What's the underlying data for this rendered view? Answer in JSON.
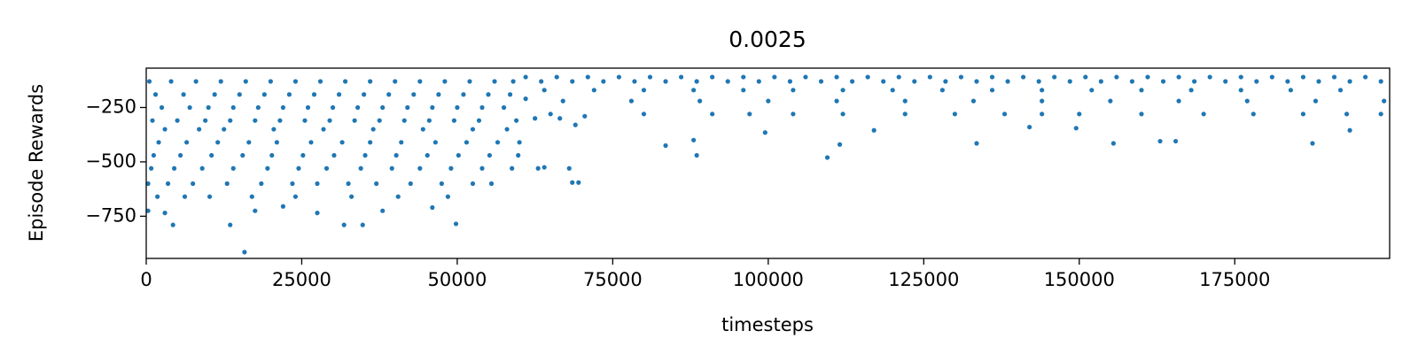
{
  "chart_data": {
    "type": "scatter",
    "title": "0.0025",
    "xlabel": "timesteps",
    "ylabel": "Episode Rewards",
    "color": "#1f77b4",
    "xlim": [
      0,
      199900
    ],
    "ylim": [
      -944,
      -69
    ],
    "xticks": [
      0,
      25000,
      50000,
      75000,
      100000,
      125000,
      150000,
      175000
    ],
    "yticks": [
      {
        "value": -750,
        "label": "−750"
      },
      {
        "value": -500,
        "label": "−500"
      },
      {
        "value": -250,
        "label": "−250"
      }
    ],
    "x": [
      500,
      4000,
      8000,
      12000,
      16000,
      20000,
      24000,
      28000,
      32000,
      36000,
      40000,
      44000,
      48000,
      52000,
      56000,
      59000,
      1500,
      6000,
      11000,
      15000,
      19000,
      23000,
      27000,
      31000,
      35000,
      39000,
      43000,
      47000,
      51000,
      55000,
      58500,
      2500,
      7000,
      10000,
      14000,
      18000,
      22000,
      26000,
      30000,
      34000,
      38000,
      42000,
      46000,
      50000,
      54000,
      57500,
      1000,
      5000,
      9500,
      13500,
      17500,
      21500,
      25500,
      29500,
      33500,
      37500,
      41500,
      45500,
      49500,
      53500,
      59500,
      3000,
      8500,
      12500,
      20500,
      28500,
      36500,
      44500,
      52500,
      58000,
      2000,
      6500,
      11500,
      16500,
      21000,
      26500,
      31500,
      36000,
      41000,
      46500,
      51500,
      56500,
      60000,
      1200,
      5500,
      10500,
      15500,
      20200,
      25200,
      30200,
      35200,
      40200,
      45200,
      50200,
      55200,
      59800,
      800,
      4500,
      9000,
      14000,
      19500,
      24500,
      29000,
      34500,
      39500,
      44000,
      49000,
      54000,
      58800,
      300,
      3500,
      7500,
      13000,
      18500,
      23500,
      27500,
      32500,
      37000,
      42500,
      47500,
      52500,
      55500,
      1800,
      6200,
      10200,
      17000,
      24000,
      33000,
      40500,
      48500,
      300,
      3000,
      4300,
      13500,
      15800,
      17500,
      27500,
      31800,
      34800,
      38000,
      49800,
      46000,
      22000,
      63000,
      64000,
      68000,
      68500,
      69500,
      61000,
      62500,
      65000,
      66500,
      69000,
      70500,
      61000,
      66000,
      71000,
      76000,
      81000,
      86000,
      91000,
      96000,
      101000,
      106000,
      111000,
      116000,
      121000,
      126000,
      131000,
      136000,
      141000,
      146000,
      151000,
      156000,
      161000,
      166000,
      171000,
      176000,
      181000,
      186000,
      191000,
      196000,
      63500,
      68500,
      73500,
      78500,
      83500,
      88500,
      93500,
      98500,
      103500,
      108500,
      113500,
      118500,
      123500,
      128500,
      133500,
      138500,
      143500,
      148500,
      153500,
      158500,
      163500,
      168500,
      173500,
      178500,
      183500,
      188500,
      193500,
      198500,
      64000,
      72000,
      80000,
      88000,
      96000,
      104000,
      112000,
      120000,
      128000,
      136000,
      144000,
      152000,
      160000,
      168000,
      176000,
      184000,
      192000,
      67000,
      78000,
      89000,
      100000,
      111000,
      122000,
      133000,
      144000,
      155000,
      166000,
      177000,
      188000,
      199000,
      80000,
      91000,
      97000,
      104000,
      112000,
      122000,
      130000,
      138000,
      144000,
      150000,
      160000,
      170000,
      178000,
      186000,
      193000,
      198500,
      83500,
      88500,
      99500,
      109500,
      111500,
      133500,
      155500,
      163000,
      165500,
      187500,
      193500,
      88000,
      142000,
      149500,
      117000
    ],
    "values": [
      -130,
      -130,
      -130,
      -130,
      -130,
      -130,
      -130,
      -130,
      -130,
      -130,
      -130,
      -130,
      -130,
      -130,
      -130,
      -130,
      -190,
      -190,
      -190,
      -190,
      -190,
      -190,
      -190,
      -190,
      -190,
      -190,
      -190,
      -190,
      -190,
      -190,
      -190,
      -250,
      -250,
      -250,
      -250,
      -250,
      -250,
      -250,
      -250,
      -250,
      -250,
      -250,
      -250,
      -250,
      -250,
      -250,
      -310,
      -310,
      -310,
      -310,
      -310,
      -310,
      -310,
      -310,
      -310,
      -310,
      -310,
      -310,
      -310,
      -310,
      -310,
      -350,
      -350,
      -350,
      -350,
      -350,
      -350,
      -350,
      -350,
      -350,
      -410,
      -410,
      -410,
      -410,
      -410,
      -410,
      -410,
      -410,
      -410,
      -410,
      -410,
      -410,
      -410,
      -470,
      -470,
      -470,
      -470,
      -470,
      -470,
      -470,
      -470,
      -470,
      -470,
      -470,
      -470,
      -470,
      -530,
      -530,
      -530,
      -530,
      -530,
      -530,
      -530,
      -530,
      -530,
      -530,
      -530,
      -530,
      -530,
      -600,
      -600,
      -600,
      -600,
      -600,
      -600,
      -600,
      -600,
      -600,
      -600,
      -600,
      -600,
      -600,
      -660,
      -660,
      -660,
      -660,
      -660,
      -660,
      -660,
      -660,
      -725,
      -735,
      -790,
      -790,
      -915,
      -725,
      -735,
      -790,
      -790,
      -725,
      -785,
      -710,
      -705,
      -530,
      -525,
      -530,
      -595,
      -595,
      -210,
      -300,
      -280,
      -300,
      -330,
      -290,
      -110,
      -110,
      -110,
      -110,
      -110,
      -110,
      -110,
      -110,
      -110,
      -110,
      -110,
      -110,
      -110,
      -110,
      -110,
      -110,
      -110,
      -110,
      -110,
      -110,
      -110,
      -110,
      -110,
      -110,
      -110,
      -110,
      -110,
      -110,
      -130,
      -130,
      -130,
      -130,
      -130,
      -130,
      -130,
      -130,
      -130,
      -130,
      -130,
      -130,
      -130,
      -130,
      -130,
      -130,
      -130,
      -130,
      -130,
      -130,
      -130,
      -130,
      -130,
      -130,
      -130,
      -130,
      -130,
      -130,
      -170,
      -170,
      -170,
      -170,
      -170,
      -170,
      -170,
      -170,
      -170,
      -170,
      -170,
      -170,
      -170,
      -170,
      -170,
      -170,
      -170,
      -220,
      -220,
      -220,
      -220,
      -220,
      -220,
      -220,
      -220,
      -220,
      -220,
      -220,
      -220,
      -220,
      -280,
      -280,
      -280,
      -280,
      -280,
      -280,
      -280,
      -280,
      -280,
      -280,
      -280,
      -280,
      -280,
      -280,
      -280,
      -280,
      -425,
      -470,
      -365,
      -480,
      -420,
      -415,
      -415,
      -405,
      -405,
      -415,
      -355,
      -400,
      -340,
      -345,
      -355
    ]
  }
}
